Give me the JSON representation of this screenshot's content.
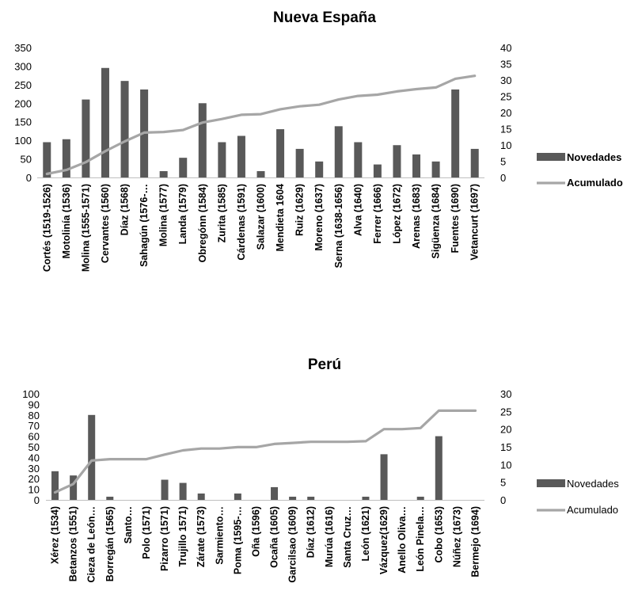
{
  "chart_data": [
    {
      "type": "bar",
      "title": "Nueva España",
      "categories": [
        "Cortés (1519-1526)",
        "Motolinía (1536)",
        "Molina (1555-1571)",
        "Cervantes (1560)",
        "Díaz (1568)",
        "Sahagún (1576-…",
        "Molina (1577)",
        "Landa (1579)",
        "Obregónn (1584)",
        "Zurita (1585)",
        "Cárdenas (1591)",
        "Salazar (1600)",
        "Mendieta 1604",
        "Ruiz (1629)",
        "Moreno (1637)",
        "Serna (1638-1656)",
        "Alva (1640)",
        "Ferrer (1666)",
        "López (1672)",
        "Arenas (1683)",
        "Sigüenza (1684)",
        "Fuentes (1690)",
        "Vetancurt (1697)"
      ],
      "series": [
        {
          "name": "Novedades",
          "axis": "left",
          "chart": "bar",
          "color": "#595959",
          "values": [
            95,
            103,
            210,
            295,
            260,
            237,
            17,
            53,
            200,
            95,
            112,
            17,
            130,
            77,
            43,
            138,
            95,
            35,
            87,
            62,
            43,
            237,
            77
          ]
        },
        {
          "name": "Acumulado",
          "axis": "right",
          "chart": "line",
          "color": "#a6a6a6",
          "values": [
            1.1,
            2.3,
            4.7,
            8.1,
            11.1,
            13.8,
            14.0,
            14.6,
            16.9,
            18.0,
            19.3,
            19.5,
            21.0,
            21.9,
            22.4,
            24.0,
            25.1,
            25.5,
            26.5,
            27.2,
            27.7,
            30.4,
            31.3
          ]
        }
      ],
      "yleft": {
        "min": 0,
        "max": 350,
        "step": 50,
        "ticks": [
          "0",
          "50",
          "100",
          "150",
          "200",
          "250",
          "300",
          "350"
        ]
      },
      "yright": {
        "min": 0,
        "max": 40,
        "step": 5,
        "ticks": [
          "0",
          "5",
          "10",
          "15",
          "20",
          "25",
          "30",
          "35",
          "40"
        ]
      },
      "legend_position": "right",
      "grid": false
    },
    {
      "type": "bar",
      "title": "Perú",
      "categories": [
        "Xérez (1534)",
        "Betanzos (1551)",
        "Cieza de León…",
        "Borregán (1565)",
        "Santo…",
        "Polo (1571)",
        "Pizarro (1571)",
        "Trujillo 1571)",
        "Zárate (1573)",
        "Sarmiento…",
        "Poma (1595-…",
        "Oña (1596)",
        "Ocaña (1605)",
        "Garcilsao (1609)",
        "Díaz (1612)",
        "Murúa (1616)",
        "Santa Cruz…",
        "León (1621)",
        "Vázquez(1629)",
        "Anello Oliva…",
        "León Pinela…",
        "Cobo (1653)",
        "Núñez (1673)",
        "Bermejo (1694)"
      ],
      "series": [
        {
          "name": "Novedades",
          "axis": "left",
          "chart": "bar",
          "color": "#595959",
          "values": [
            27,
            23,
            80,
            3,
            0,
            0,
            19,
            16,
            6,
            0,
            6,
            0,
            12,
            3,
            3,
            0,
            0,
            3,
            43,
            0,
            3,
            60,
            0,
            0
          ]
        },
        {
          "name": "Acumulado",
          "axis": "right",
          "chart": "line",
          "color": "#a6a6a6",
          "values": [
            2.1,
            4.5,
            11.1,
            11.5,
            11.5,
            11.5,
            12.8,
            14.0,
            14.5,
            14.5,
            14.9,
            14.9,
            15.8,
            16.1,
            16.4,
            16.4,
            16.4,
            16.6,
            20.0,
            20.0,
            20.3,
            25.2,
            25.2,
            25.2
          ]
        }
      ],
      "yleft": {
        "min": 0,
        "max": 100,
        "step": 10,
        "ticks": [
          "0",
          "10",
          "20",
          "30",
          "40",
          "50",
          "60",
          "70",
          "80",
          "90",
          "100"
        ]
      },
      "yright": {
        "min": 0,
        "max": 30,
        "step": 5,
        "ticks": [
          "0",
          "5",
          "10",
          "15",
          "20",
          "25",
          "30"
        ]
      },
      "legend_position": "right",
      "grid": false
    }
  ]
}
